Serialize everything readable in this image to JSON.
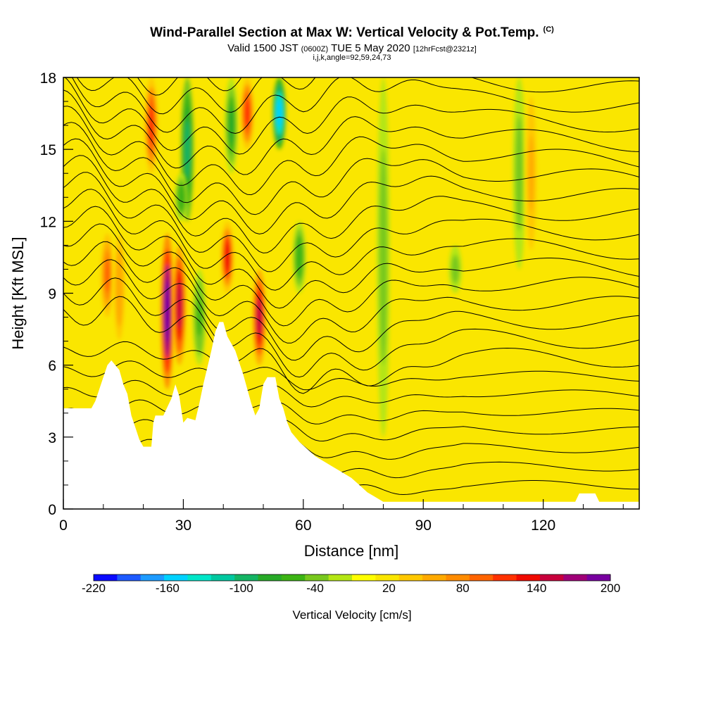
{
  "title": "Wind-Parallel Section at Max W: Vertical Velocity & Pot.Temp.",
  "title_tag": "(C)",
  "subtitle_main_a": "Valid 1500 JST",
  "subtitle_small_a": "(0600Z)",
  "subtitle_main_b": "TUE 5 May 2020",
  "subtitle_small_b": "[12hrFcst@2321z]",
  "subtitle2": "i,j,k,angle=92,59,24,73",
  "chart_data": {
    "type": "heatmap",
    "xlabel": "Distance [nm]",
    "ylabel": "Height [Kft MSL]",
    "xlim": [
      0,
      144
    ],
    "ylim": [
      0,
      18
    ],
    "x_ticks": [
      0,
      30,
      60,
      90,
      120
    ],
    "y_ticks": [
      0,
      3,
      6,
      9,
      12,
      15,
      18
    ],
    "colorbar": {
      "label": "Vertical Velocity [cm/s]",
      "tick_labels": [
        "-220",
        "-160",
        "-100",
        "-40",
        "20",
        "80",
        "140",
        "200"
      ],
      "tick_values": [
        -220,
        -160,
        -100,
        -40,
        20,
        80,
        140,
        200
      ],
      "range": [
        -220,
        200
      ],
      "colors": [
        "#0a0aff",
        "#1e5aff",
        "#1e9bff",
        "#00d2ff",
        "#00e6c8",
        "#00c8a0",
        "#14b464",
        "#28aa28",
        "#3cb414",
        "#78c81e",
        "#b4e614",
        "#ffff00",
        "#fae600",
        "#ffc800",
        "#ffaa00",
        "#ff8c00",
        "#ff6400",
        "#ff3200",
        "#f00a00",
        "#c8003c",
        "#a00078",
        "#7800a0"
      ]
    },
    "terrain_height_kft": [
      {
        "x": 0,
        "h": 4.2
      },
      {
        "x": 7,
        "h": 4.2
      },
      {
        "x": 8,
        "h": 4.5
      },
      {
        "x": 9,
        "h": 5.0
      },
      {
        "x": 10,
        "h": 5.5
      },
      {
        "x": 11,
        "h": 6.0
      },
      {
        "x": 12,
        "h": 6.2
      },
      {
        "x": 13,
        "h": 6.0
      },
      {
        "x": 14,
        "h": 5.8
      },
      {
        "x": 15,
        "h": 5.2
      },
      {
        "x": 16,
        "h": 4.8
      },
      {
        "x": 17,
        "h": 3.9
      },
      {
        "x": 18,
        "h": 3.4
      },
      {
        "x": 19,
        "h": 2.9
      },
      {
        "x": 20,
        "h": 2.6
      },
      {
        "x": 22,
        "h": 2.6
      },
      {
        "x": 22.5,
        "h": 3.6
      },
      {
        "x": 23,
        "h": 3.9
      },
      {
        "x": 25,
        "h": 3.9
      },
      {
        "x": 27,
        "h": 4.6
      },
      {
        "x": 28,
        "h": 5.2
      },
      {
        "x": 29,
        "h": 4.7
      },
      {
        "x": 30,
        "h": 3.6
      },
      {
        "x": 31,
        "h": 3.8
      },
      {
        "x": 33,
        "h": 3.7
      },
      {
        "x": 34,
        "h": 4.4
      },
      {
        "x": 35,
        "h": 5.2
      },
      {
        "x": 37,
        "h": 6.6
      },
      {
        "x": 38,
        "h": 7.4
      },
      {
        "x": 39,
        "h": 7.8
      },
      {
        "x": 40,
        "h": 7.8
      },
      {
        "x": 41,
        "h": 7.2
      },
      {
        "x": 43,
        "h": 6.6
      },
      {
        "x": 45,
        "h": 5.6
      },
      {
        "x": 46,
        "h": 5.0
      },
      {
        "x": 47,
        "h": 4.4
      },
      {
        "x": 48,
        "h": 3.9
      },
      {
        "x": 49,
        "h": 4.2
      },
      {
        "x": 50,
        "h": 5.2
      },
      {
        "x": 51,
        "h": 5.5
      },
      {
        "x": 53,
        "h": 5.5
      },
      {
        "x": 54,
        "h": 4.6
      },
      {
        "x": 55,
        "h": 4.2
      },
      {
        "x": 56,
        "h": 3.6
      },
      {
        "x": 57,
        "h": 3.2
      },
      {
        "x": 59,
        "h": 2.8
      },
      {
        "x": 61,
        "h": 2.5
      },
      {
        "x": 63,
        "h": 2.2
      },
      {
        "x": 65,
        "h": 2.0
      },
      {
        "x": 67,
        "h": 1.8
      },
      {
        "x": 69,
        "h": 1.6
      },
      {
        "x": 72,
        "h": 1.3
      },
      {
        "x": 74,
        "h": 1.0
      },
      {
        "x": 76,
        "h": 0.7
      },
      {
        "x": 78,
        "h": 0.5
      },
      {
        "x": 80,
        "h": 0.3
      },
      {
        "x": 82,
        "h": 0.3
      },
      {
        "x": 83,
        "h": 0.3
      },
      {
        "x": 128,
        "h": 0.3
      },
      {
        "x": 129,
        "h": 0.65
      },
      {
        "x": 133,
        "h": 0.65
      },
      {
        "x": 134,
        "h": 0.3
      },
      {
        "x": 144,
        "h": 0.3
      }
    ],
    "vertical_velocity_cores": [
      {
        "x": 11,
        "y_range": [
          8,
          11.5
        ],
        "w": 90
      },
      {
        "x": 14,
        "y_range": [
          6.5,
          12
        ],
        "w": 60
      },
      {
        "x": 22,
        "y_range": [
          14,
          18
        ],
        "w": 120
      },
      {
        "x": 26,
        "y_range": [
          5,
          11.5
        ],
        "w": 200
      },
      {
        "x": 29,
        "y_range": [
          6,
          11
        ],
        "w": 150
      },
      {
        "x": 31,
        "y_range": [
          12,
          18
        ],
        "w": -100
      },
      {
        "x": 29.5,
        "y_range": [
          12,
          14
        ],
        "w": -60
      },
      {
        "x": 34,
        "y_range": [
          6,
          10
        ],
        "w": -50
      },
      {
        "x": 41,
        "y_range": [
          9,
          12
        ],
        "w": 130
      },
      {
        "x": 42,
        "y_range": [
          14,
          18
        ],
        "w": -70
      },
      {
        "x": 46,
        "y_range": [
          15,
          18
        ],
        "w": 120
      },
      {
        "x": 49,
        "y_range": [
          6,
          10
        ],
        "w": 160
      },
      {
        "x": 54,
        "y_range": [
          15,
          18
        ],
        "w": -160
      },
      {
        "x": 59,
        "y_range": [
          9,
          12
        ],
        "w": -60
      },
      {
        "x": 80,
        "y_range": [
          3,
          18
        ],
        "w": -40
      },
      {
        "x": 98,
        "y_range": [
          9,
          11
        ],
        "w": -40
      },
      {
        "x": 114,
        "y_range": [
          10,
          18
        ],
        "w": -40
      },
      {
        "x": 117,
        "y_range": [
          10,
          18
        ],
        "w": 50
      }
    ],
    "theta_contours": "potential temperature isentropes, roughly horizontal, tilting upward toward the mountains at x=0–60 nm and more widely spaced east of 60 nm"
  }
}
